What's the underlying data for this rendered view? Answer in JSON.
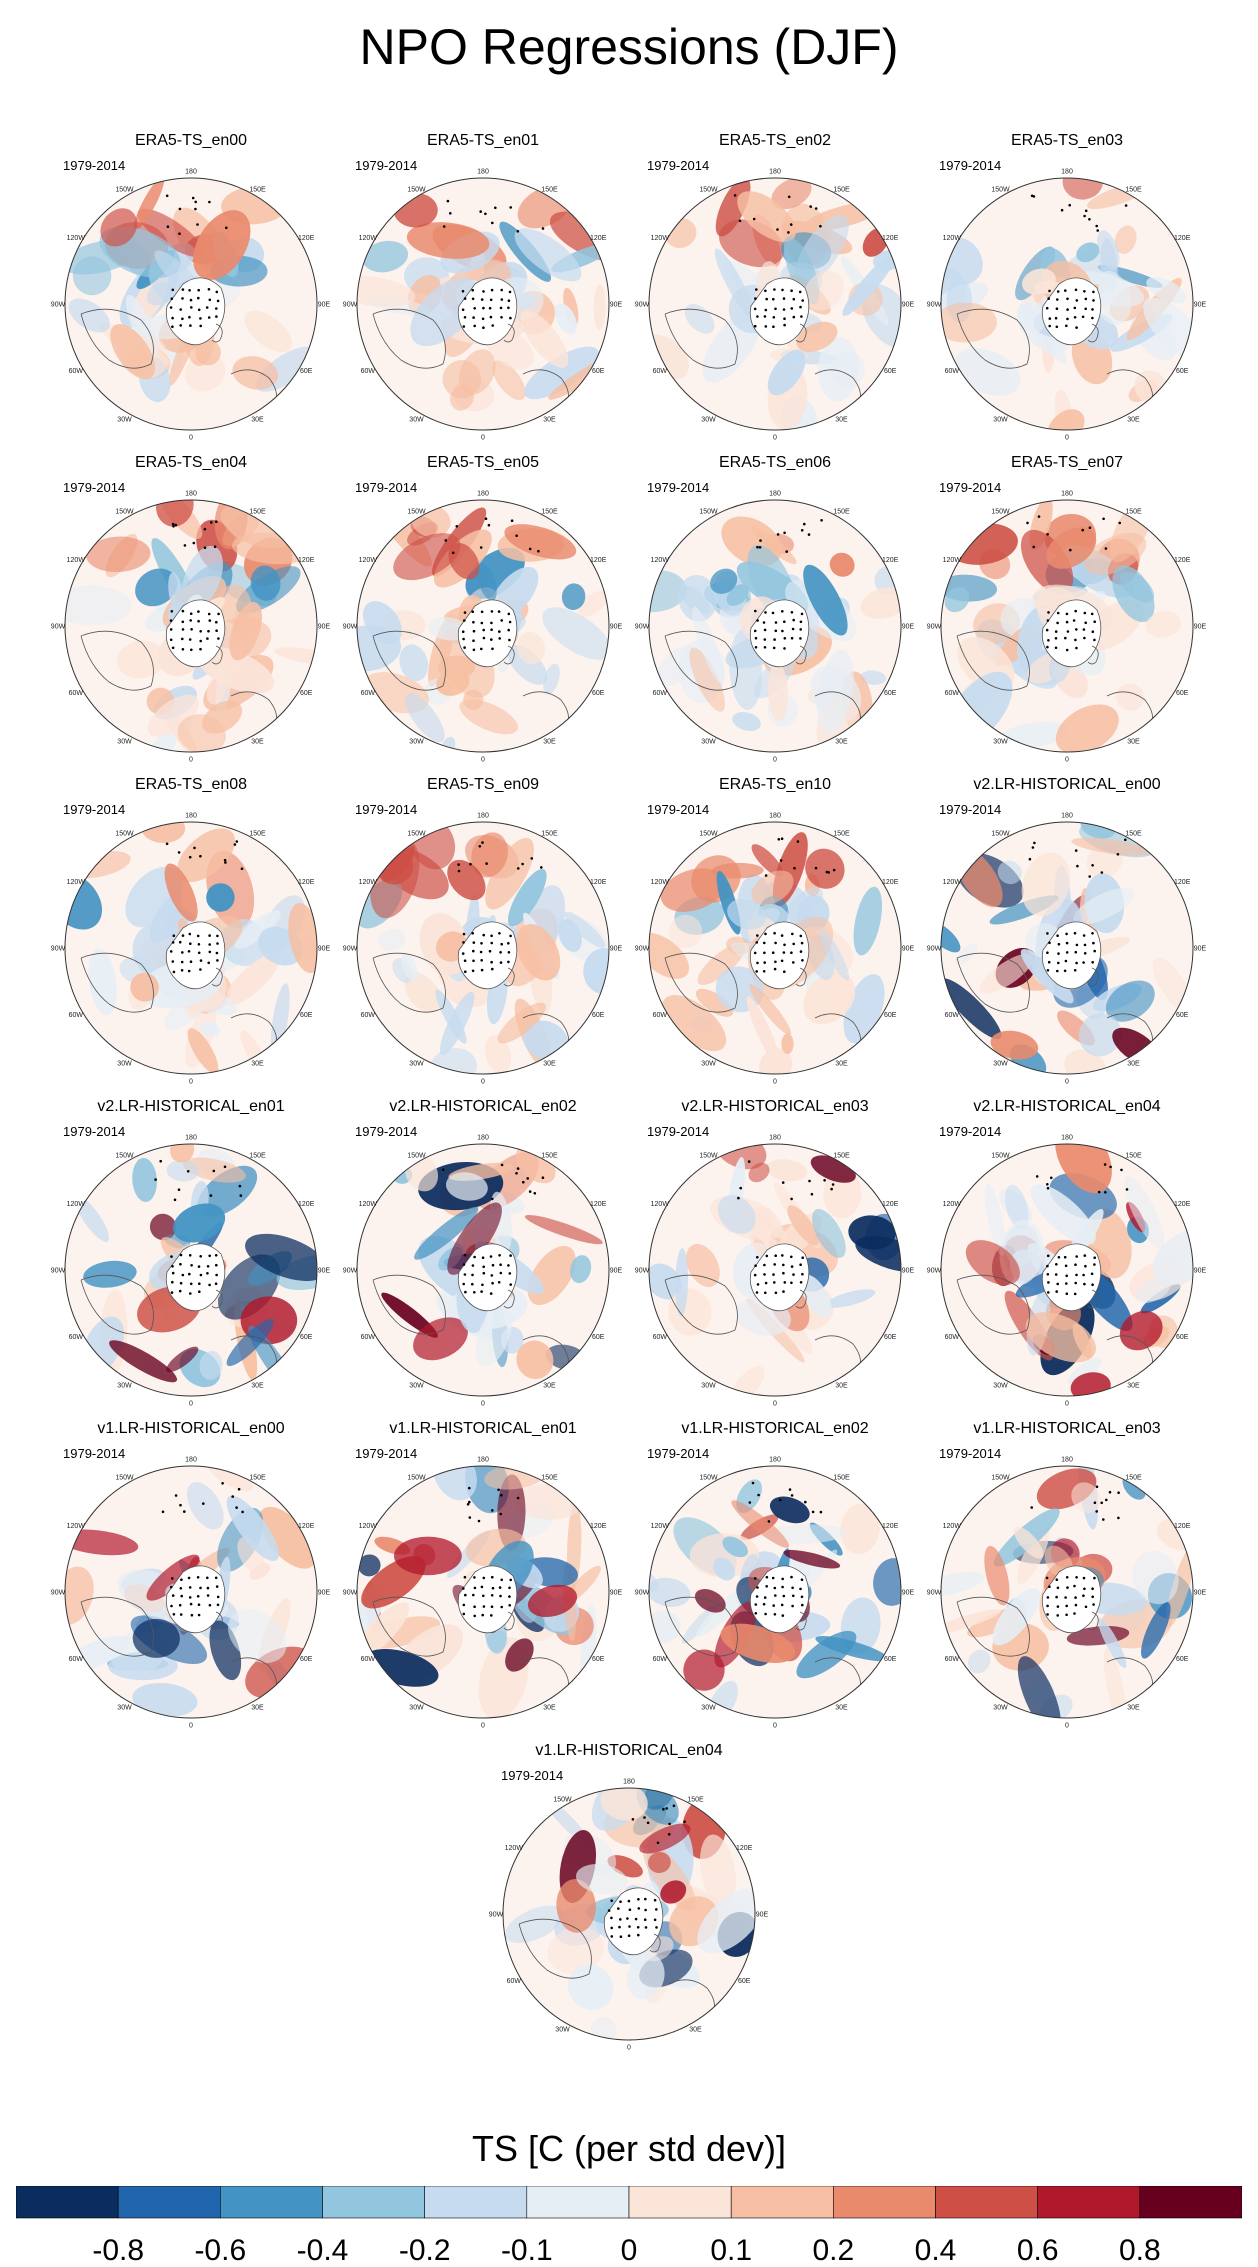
{
  "title": "NPO Regressions (DJF)",
  "period": "1979-2014",
  "lon_labels": [
    "180",
    "150E",
    "120E",
    "90E",
    "60E",
    "30E",
    "0",
    "30W",
    "60W",
    "90W",
    "120W",
    "150W"
  ],
  "colors": {
    "map_fill": "#ffffff",
    "coast": "#555555",
    "stipple": "#000000",
    "ocean_border": "#333333"
  },
  "chart_data": {
    "type": "heatmap",
    "title": "NPO Regressions (DJF)",
    "projection": "north-polar-stereographic",
    "variable": "TS",
    "panels": [
      {
        "name": "ERA5-TS_en00",
        "period": "1979-2014",
        "style": "era5",
        "seed": 1
      },
      {
        "name": "ERA5-TS_en01",
        "period": "1979-2014",
        "style": "era5",
        "seed": 2
      },
      {
        "name": "ERA5-TS_en02",
        "period": "1979-2014",
        "style": "era5",
        "seed": 3
      },
      {
        "name": "ERA5-TS_en03",
        "period": "1979-2014",
        "style": "era5",
        "seed": 4
      },
      {
        "name": "ERA5-TS_en04",
        "period": "1979-2014",
        "style": "era5",
        "seed": 5
      },
      {
        "name": "ERA5-TS_en05",
        "period": "1979-2014",
        "style": "era5",
        "seed": 6
      },
      {
        "name": "ERA5-TS_en06",
        "period": "1979-2014",
        "style": "era5",
        "seed": 7
      },
      {
        "name": "ERA5-TS_en07",
        "period": "1979-2014",
        "style": "era5",
        "seed": 8
      },
      {
        "name": "ERA5-TS_en08",
        "period": "1979-2014",
        "style": "era5",
        "seed": 9
      },
      {
        "name": "ERA5-TS_en09",
        "period": "1979-2014",
        "style": "era5",
        "seed": 10
      },
      {
        "name": "ERA5-TS_en10",
        "period": "1979-2014",
        "style": "era5",
        "seed": 11
      },
      {
        "name": "v2.LR-HISTORICAL_en00",
        "period": "1979-2014",
        "style": "model",
        "seed": 12
      },
      {
        "name": "v2.LR-HISTORICAL_en01",
        "period": "1979-2014",
        "style": "model",
        "seed": 13
      },
      {
        "name": "v2.LR-HISTORICAL_en02",
        "period": "1979-2014",
        "style": "model",
        "seed": 14
      },
      {
        "name": "v2.LR-HISTORICAL_en03",
        "period": "1979-2014",
        "style": "model",
        "seed": 15
      },
      {
        "name": "v2.LR-HISTORICAL_en04",
        "period": "1979-2014",
        "style": "model",
        "seed": 16
      },
      {
        "name": "v1.LR-HISTORICAL_en00",
        "period": "1979-2014",
        "style": "model",
        "seed": 17
      },
      {
        "name": "v1.LR-HISTORICAL_en01",
        "period": "1979-2014",
        "style": "model",
        "seed": 18
      },
      {
        "name": "v1.LR-HISTORICAL_en02",
        "period": "1979-2014",
        "style": "model",
        "seed": 19
      },
      {
        "name": "v1.LR-HISTORICAL_en03",
        "period": "1979-2014",
        "style": "model",
        "seed": 20
      },
      {
        "name": "v1.LR-HISTORICAL_en04",
        "period": "1979-2014",
        "style": "model",
        "seed": 21
      }
    ],
    "colorbar": {
      "title": "TS [C (per std dev)]",
      "levels": [
        "-0.8",
        "-0.6",
        "-0.4",
        "-0.2",
        "-0.1",
        "0",
        "0.1",
        "0.2",
        "0.4",
        "0.6",
        "0.8"
      ],
      "colors": [
        "#0b2c5e",
        "#2166ac",
        "#4393c3",
        "#92c5de",
        "#c6dbef",
        "#e6eef5",
        "#fbe4d8",
        "#f6bfa3",
        "#e98a6d",
        "#cd4f45",
        "#b1182b",
        "#67001f"
      ]
    }
  }
}
